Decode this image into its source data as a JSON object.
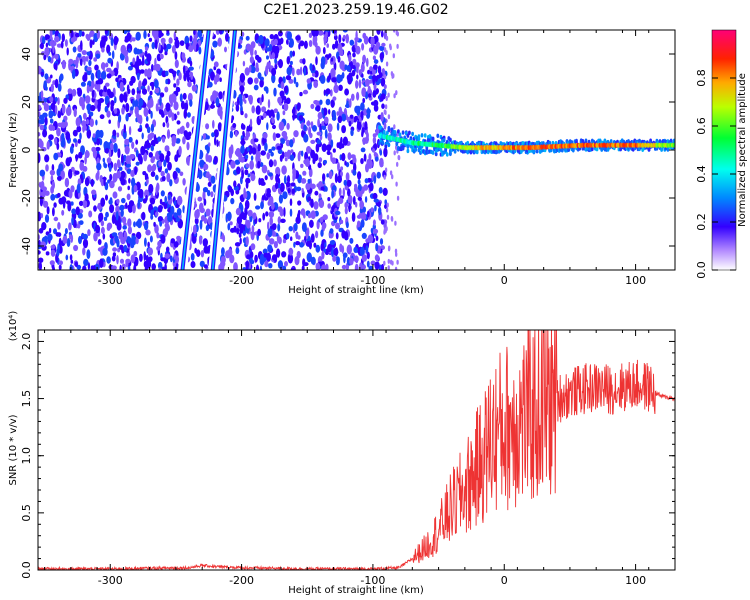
{
  "title": "C2E1.2023.259.19.46.G02",
  "colorbar": {
    "label": "Normalized spectral amplitude",
    "ticks": [
      "0.0",
      "0.2",
      "0.4",
      "0.6",
      "0.8"
    ],
    "values": [
      0.0,
      0.2,
      0.4,
      0.6,
      0.8
    ],
    "range": [
      0,
      1
    ]
  },
  "chart_data": [
    {
      "type": "heatmap",
      "xlabel": "Height of straight line (km)",
      "ylabel": "Frequency (Hz)",
      "xlim": [
        -355,
        130
      ],
      "ylim": [
        -50,
        50
      ],
      "xticks": [
        -300,
        -200,
        -100,
        0,
        100
      ],
      "yticks": [
        -40,
        -20,
        0,
        20,
        40
      ],
      "xticklabels": [
        "-300",
        "-200",
        "-100",
        "0",
        "100"
      ],
      "yticklabels": [
        "-40",
        "-20",
        "0",
        "20",
        "40"
      ],
      "grid": false,
      "noise_region_x": [
        -355,
        -90
      ],
      "signal_band": [
        {
          "x": -95,
          "freq": 6,
          "amplitude": 0.5
        },
        {
          "x": -70,
          "freq": 3,
          "amplitude": 0.55
        },
        {
          "x": -50,
          "freq": 2,
          "amplitude": 0.6
        },
        {
          "x": -30,
          "freq": 1,
          "amplitude": 0.75
        },
        {
          "x": -10,
          "freq": 1,
          "amplitude": 0.85
        },
        {
          "x": 20,
          "freq": 1,
          "amplitude": 0.9
        },
        {
          "x": 60,
          "freq": 2,
          "amplitude": 0.9
        },
        {
          "x": 100,
          "freq": 2,
          "amplitude": 0.9
        },
        {
          "x": 125,
          "freq": 2,
          "amplitude": 0.7
        }
      ],
      "diagonal_streaks": [
        {
          "x_start": -245,
          "x_end": -225,
          "freq_start": -50,
          "freq_end": 50
        },
        {
          "x_start": -222,
          "x_end": -205,
          "freq_start": -50,
          "freq_end": 50
        }
      ]
    },
    {
      "type": "line",
      "xlabel": "Height of straight line (km)",
      "ylabel": "SNR (10 * v/v)",
      "y_multiplier": "(x10⁴)",
      "xlim": [
        -355,
        130
      ],
      "ylim": [
        0,
        2.1
      ],
      "xticks": [
        -300,
        -200,
        -100,
        0,
        100
      ],
      "yticks": [
        0.0,
        0.5,
        1.0,
        1.5,
        2.0
      ],
      "xticklabels": [
        "-300",
        "-200",
        "-100",
        "0",
        "100"
      ],
      "yticklabels": [
        "0.0",
        "0.5",
        "1.0",
        "1.5",
        "2.0"
      ],
      "grid": false,
      "series": [
        {
          "color": "#ee3333",
          "x": [
            -355,
            -300,
            -240,
            -230,
            -220,
            -200,
            -150,
            -100,
            -80,
            -70,
            -65,
            -60,
            -50,
            -40,
            -30,
            -20,
            -15,
            -10,
            0,
            10,
            20,
            30,
            40,
            50,
            60,
            70,
            80,
            90,
            100,
            110,
            115,
            120,
            125,
            130
          ],
          "y": [
            0.01,
            0.01,
            0.02,
            0.04,
            0.03,
            0.02,
            0.01,
            0.01,
            0.02,
            0.1,
            0.15,
            0.2,
            0.35,
            0.55,
            0.7,
            0.9,
            1.0,
            1.15,
            1.25,
            1.3,
            1.35,
            1.45,
            1.5,
            1.55,
            1.58,
            1.6,
            1.58,
            1.6,
            1.62,
            1.6,
            1.55,
            1.52,
            1.51,
            1.5
          ]
        }
      ]
    }
  ]
}
